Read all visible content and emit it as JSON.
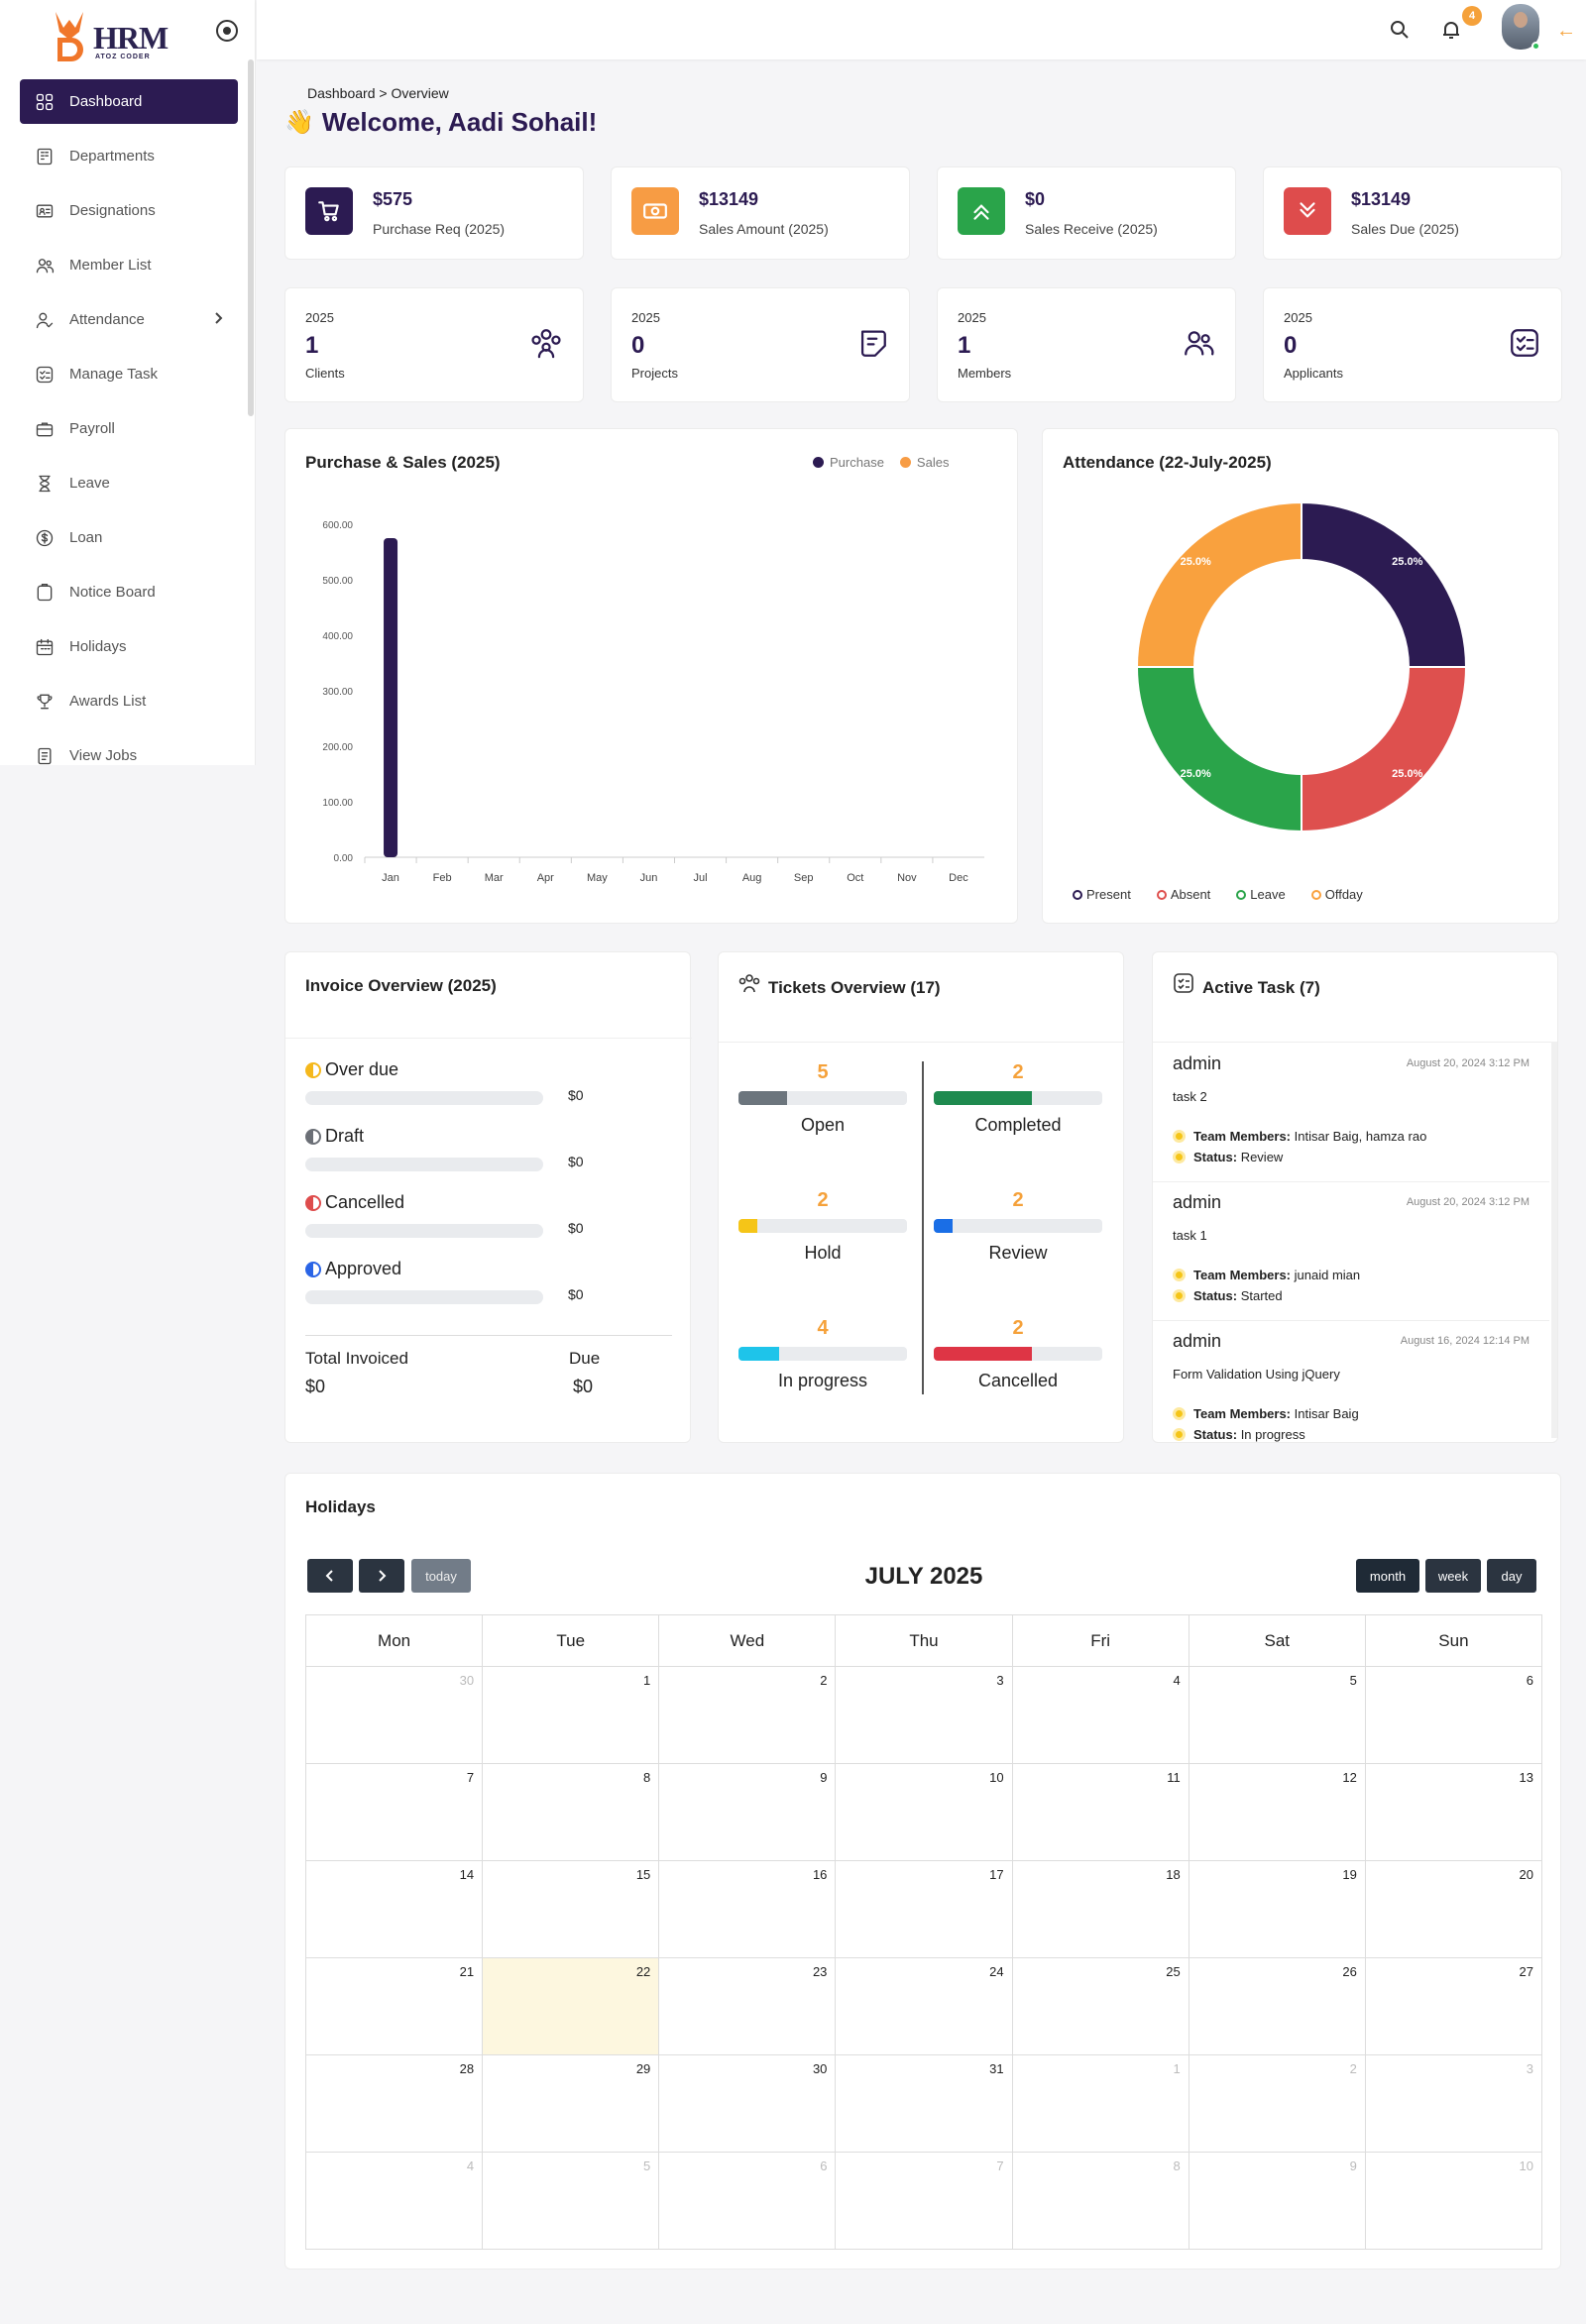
{
  "brand": {
    "name": "HRM",
    "tagline": "ATOZ CODER"
  },
  "sidebar": {
    "items": [
      {
        "label": "Dashboard",
        "icon": "grid-icon",
        "active": true
      },
      {
        "label": "Departments",
        "icon": "building-icon"
      },
      {
        "label": "Designations",
        "icon": "id-card-icon"
      },
      {
        "label": "Member List",
        "icon": "users-icon"
      },
      {
        "label": "Attendance",
        "icon": "user-check-icon",
        "has_children": true
      },
      {
        "label": "Manage Task",
        "icon": "checklist-icon"
      },
      {
        "label": "Payroll",
        "icon": "briefcase-icon"
      },
      {
        "label": "Leave",
        "icon": "hourglass-icon"
      },
      {
        "label": "Loan",
        "icon": "dollar-icon"
      },
      {
        "label": "Notice Board",
        "icon": "clipboard-icon"
      },
      {
        "label": "Holidays",
        "icon": "calendar-icon"
      },
      {
        "label": "Awards List",
        "icon": "trophy-icon"
      },
      {
        "label": "View Jobs",
        "icon": "document-icon"
      }
    ]
  },
  "topbar": {
    "notification_count": "4",
    "icons": [
      "search-icon",
      "bell-icon",
      "arrow-left-icon"
    ]
  },
  "breadcrumb": "Dashboard > Overview",
  "welcome": "Welcome, Aadi Sohail!",
  "stats": [
    {
      "value": "$575",
      "label": "Purchase Req (2025)",
      "color": "#2c1b52",
      "icon": "cart-icon"
    },
    {
      "value": "$13149",
      "label": "Sales Amount (2025)",
      "color": "#f79c44",
      "icon": "cash-icon"
    },
    {
      "value": "$0",
      "label": "Sales Receive (2025)",
      "color": "#2aa44a",
      "icon": "chevrons-up-icon"
    },
    {
      "value": "$13149",
      "label": "Sales Due (2025)",
      "color": "#de4c4c",
      "icon": "chevrons-down-icon"
    }
  ],
  "counts": [
    {
      "year": "2025",
      "value": "1",
      "label": "Clients",
      "icon": "group-icon"
    },
    {
      "year": "2025",
      "value": "0",
      "label": "Projects",
      "icon": "sticky-note-icon"
    },
    {
      "year": "2025",
      "value": "1",
      "label": "Members",
      "icon": "users-icon"
    },
    {
      "year": "2025",
      "value": "0",
      "label": "Applicants",
      "icon": "checklist-icon"
    }
  ],
  "chart_data": [
    {
      "type": "bar",
      "title": "Purchase & Sales (2025)",
      "categories": [
        "Jan",
        "Feb",
        "Mar",
        "Apr",
        "May",
        "Jun",
        "Jul",
        "Aug",
        "Sep",
        "Oct",
        "Nov",
        "Dec"
      ],
      "series": [
        {
          "name": "Purchase",
          "color": "#2c1b52",
          "values": [
            575,
            0,
            0,
            0,
            0,
            0,
            0,
            0,
            0,
            0,
            0,
            0
          ]
        },
        {
          "name": "Sales",
          "color": "#f79c44",
          "values": [
            0,
            0,
            0,
            0,
            0,
            0,
            0,
            0,
            0,
            0,
            0,
            0
          ]
        }
      ],
      "yticks": [
        "0.00",
        "100.00",
        "200.00",
        "300.00",
        "400.00",
        "500.00",
        "600.00"
      ],
      "ylim": [
        0,
        600
      ],
      "legend": "top-right"
    },
    {
      "type": "pie",
      "title": "Attendance (22-July-2025)",
      "labels": [
        "Present",
        "Absent",
        "Leave",
        "Offday"
      ],
      "values": [
        25,
        25,
        25,
        25
      ],
      "slice_labels": [
        "25.0%",
        "25.0%",
        "25.0%",
        "25.0%"
      ],
      "colors": [
        "#2c1b52",
        "#de504e",
        "#2aa44a",
        "#f9a13e"
      ],
      "legend": "bottom"
    }
  ],
  "invoice": {
    "title": "Invoice Overview (2025)",
    "rows": [
      {
        "label": "Over due",
        "amount": "$0",
        "color": "#f5b81c"
      },
      {
        "label": "Draft",
        "amount": "$0",
        "color": "#6b6f76"
      },
      {
        "label": "Cancelled",
        "amount": "$0",
        "color": "#de4c4c"
      },
      {
        "label": "Approved",
        "amount": "$0",
        "color": "#2a64e6"
      }
    ],
    "total_label": "Total Invoiced",
    "total_value": "$0",
    "due_label": "Due",
    "due_value": "$0"
  },
  "tickets": {
    "title": "Tickets Overview (17)",
    "items": [
      {
        "label": "Open",
        "count": "5",
        "fraction": 0.29,
        "color": "#6c757d"
      },
      {
        "label": "Completed",
        "count": "2",
        "fraction": 0.58,
        "color": "#1e8a4f"
      },
      {
        "label": "Hold",
        "count": "2",
        "fraction": 0.11,
        "color": "#f5c518"
      },
      {
        "label": "Review",
        "count": "2",
        "fraction": 0.11,
        "color": "#1a6ee6"
      },
      {
        "label": "In progress",
        "count": "4",
        "fraction": 0.24,
        "color": "#1ec4ea"
      },
      {
        "label": "Cancelled",
        "count": "2",
        "fraction": 0.58,
        "color": "#de3545"
      }
    ]
  },
  "tasks": {
    "title": "Active Task (7)",
    "members_label": "Team Members:",
    "status_label": "Status:",
    "items": [
      {
        "who": "admin",
        "when": "August 20, 2024 3:12 PM",
        "name": "task 2",
        "members": "Intisar Baig, hamza rao",
        "status": "Review"
      },
      {
        "who": "admin",
        "when": "August 20, 2024 3:12 PM",
        "name": "task 1",
        "members": "junaid mian",
        "status": "Started"
      },
      {
        "who": "admin",
        "when": "August 16, 2024 12:14 PM",
        "name": "Form Validation Using jQuery",
        "members": "Intisar Baig",
        "status": "In progress"
      }
    ]
  },
  "holidays": {
    "title": "Holidays",
    "month_title": "JULY 2025",
    "today_label": "today",
    "views": [
      "month",
      "week",
      "day"
    ],
    "weekdays": [
      "Mon",
      "Tue",
      "Wed",
      "Thu",
      "Fri",
      "Sat",
      "Sun"
    ],
    "weeks": [
      [
        "30",
        "1",
        "2",
        "3",
        "4",
        "5",
        "6"
      ],
      [
        "7",
        "8",
        "9",
        "10",
        "11",
        "12",
        "13"
      ],
      [
        "14",
        "15",
        "16",
        "17",
        "18",
        "19",
        "20"
      ],
      [
        "21",
        "22",
        "23",
        "24",
        "25",
        "26",
        "27"
      ],
      [
        "28",
        "29",
        "30",
        "31",
        "1",
        "2",
        "3"
      ],
      [
        "4",
        "5",
        "6",
        "7",
        "8",
        "9",
        "10"
      ]
    ],
    "today": "22"
  }
}
